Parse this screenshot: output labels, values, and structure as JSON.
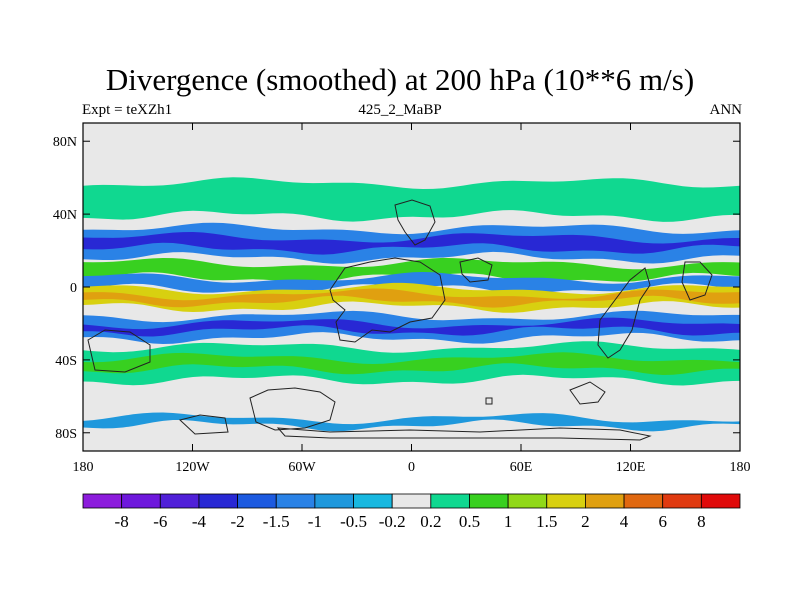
{
  "plot": {
    "title": "Divergence (smoothed) at 200 hPa (10**6 m/s)",
    "left_label": "Expt = teXZh1",
    "center_label": "425_2_MaBP",
    "right_label": "ANN"
  },
  "axes": {
    "lon_ticks": [
      {
        "lon": -180,
        "label": "180"
      },
      {
        "lon": -120,
        "label": "120W"
      },
      {
        "lon": -60,
        "label": "60W"
      },
      {
        "lon": 0,
        "label": "0"
      },
      {
        "lon": 60,
        "label": "60E"
      },
      {
        "lon": 120,
        "label": "120E"
      },
      {
        "lon": 180,
        "label": "180"
      }
    ],
    "lat_ticks": [
      {
        "lat": 80,
        "label": "80N"
      },
      {
        "lat": 40,
        "label": "40N"
      },
      {
        "lat": 0,
        "label": "0"
      },
      {
        "lat": -40,
        "label": "40S"
      },
      {
        "lat": -80,
        "label": "80S"
      }
    ],
    "lon_range": [
      -180,
      180
    ],
    "lat_range": [
      -90,
      90
    ]
  },
  "colorbar": {
    "colors": [
      "#8c1cdc",
      "#6e18dc",
      "#5020d8",
      "#2828d4",
      "#1c5ae0",
      "#2a82e6",
      "#1f98dc",
      "#18b8e0",
      "#e8e8e8",
      "#10d890",
      "#38d020",
      "#90d818",
      "#d8d010",
      "#e0a010",
      "#e06810",
      "#e03a10",
      "#e00a0a"
    ],
    "levels": [
      "-8",
      "-6",
      "-4",
      "-2",
      "-1.5",
      "-1",
      "-0.5",
      "-0.2",
      "0.2",
      "0.5",
      "1",
      "1.5",
      "2",
      "4",
      "6",
      "8"
    ]
  },
  "field_bands": [
    {
      "lat_center": 48,
      "half_width": 9,
      "value": 0.5,
      "color": "#10d890"
    },
    {
      "lat_center": 24,
      "half_width": 8,
      "value": -1,
      "color": "#2a82e6"
    },
    {
      "lat_center": 24,
      "half_width": 3,
      "value": -2,
      "color": "#2828d4"
    },
    {
      "lat_center": 9,
      "half_width": 4,
      "value": 1,
      "color": "#38d020"
    },
    {
      "lat_center": 2,
      "half_width": 3,
      "value": -1,
      "color": "#2a82e6"
    },
    {
      "lat_center": -6,
      "half_width": 5,
      "value": 2,
      "color": "#d8d010"
    },
    {
      "lat_center": -6,
      "half_width": 2,
      "value": 4,
      "color": "#e0a010"
    },
    {
      "lat_center": -22,
      "half_width": 6,
      "value": -1,
      "color": "#2a82e6"
    },
    {
      "lat_center": -22,
      "half_width": 2,
      "value": -2,
      "color": "#2828d4"
    },
    {
      "lat_center": -42,
      "half_width": 9,
      "value": 0.5,
      "color": "#10d890"
    },
    {
      "lat_center": -42,
      "half_width": 3,
      "value": 1,
      "color": "#38d020"
    },
    {
      "lat_center": -74,
      "half_width": 2,
      "value": -0.5,
      "color": "#1f98dc"
    }
  ]
}
